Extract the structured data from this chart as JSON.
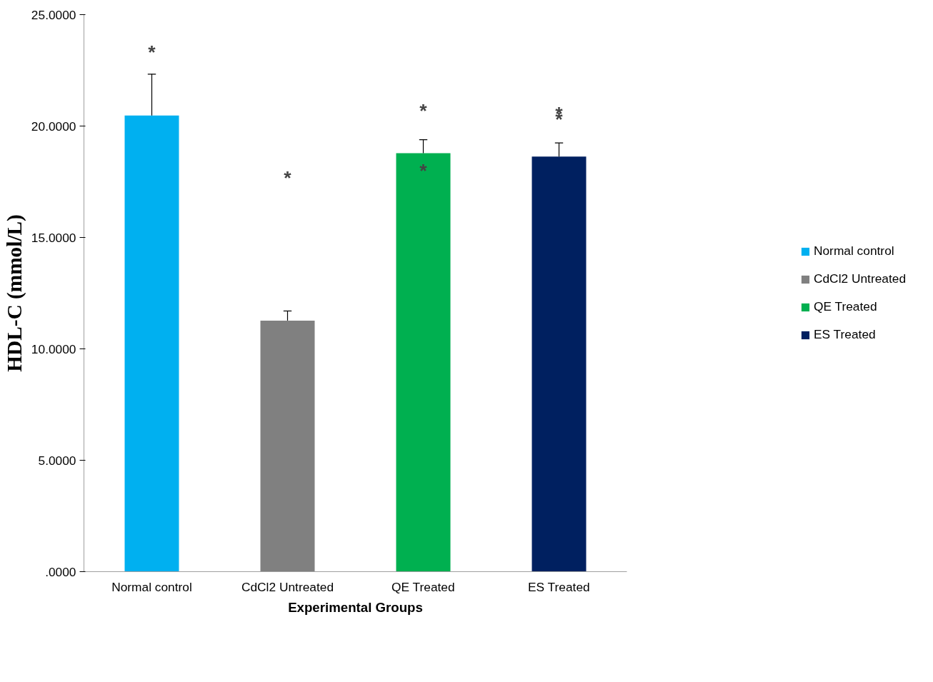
{
  "chart_data": {
    "type": "bar",
    "xlabel": "Experimental Groups",
    "ylabel": "HDL-C (mmol/L)",
    "categories": [
      "Normal control",
      "CdCl2 Untreated",
      "QE Treated",
      "ES Treated"
    ],
    "series": [
      {
        "name": "Normal control",
        "color": "#00b0f0",
        "values": [
          20.47,
          null,
          null,
          null
        ],
        "errors": [
          [
            20.47,
            22.33
          ],
          null,
          null,
          null
        ]
      },
      {
        "name": "CdCl2 Untreated",
        "color": "#808080",
        "values": [
          null,
          11.27,
          null,
          null
        ],
        "errors": [
          null,
          [
            11.27,
            11.7
          ],
          null,
          null
        ]
      },
      {
        "name": "QE Treated",
        "color": "#00b050",
        "values": [
          null,
          null,
          18.78,
          null
        ],
        "errors": [
          null,
          null,
          [
            18.78,
            19.39
          ],
          null
        ]
      },
      {
        "name": "ES Treated",
        "color": "#002060",
        "values": [
          null,
          null,
          null,
          18.63
        ],
        "errors": [
          null,
          null,
          null,
          [
            18.63,
            19.24
          ]
        ]
      }
    ],
    "ylim": [
      0,
      25
    ],
    "yticks": [
      {
        "value": 0,
        "label": ".0000"
      },
      {
        "value": 5,
        "label": "5.0000"
      },
      {
        "value": 10,
        "label": "10.0000"
      },
      {
        "value": 15,
        "label": "15.0000"
      },
      {
        "value": 20,
        "label": "20.0000"
      },
      {
        "value": 25,
        "label": "25.0000"
      }
    ],
    "grid": false,
    "legend": "right",
    "annotations": [
      "*",
      "*",
      "*",
      "*",
      "*",
      "*"
    ]
  }
}
